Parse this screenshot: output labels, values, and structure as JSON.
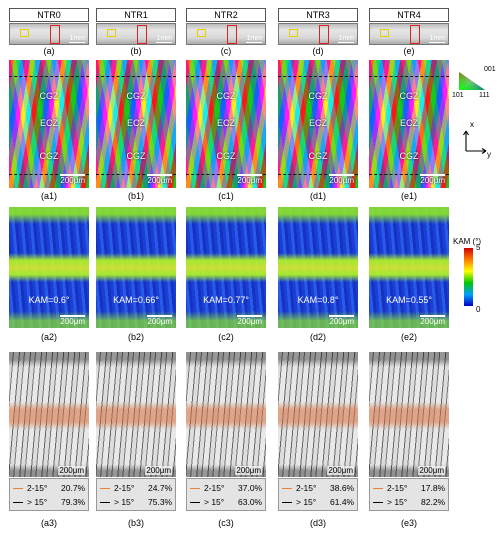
{
  "samples": [
    {
      "name": "NTR0",
      "strip_label": "(a)",
      "ipf_label": "(a1)",
      "kam_label": "(a2)",
      "gb_label": "(a3)",
      "kam": "KAM=0.6°",
      "low_pct": "20.7%",
      "high_pct": "79.3%"
    },
    {
      "name": "NTR1",
      "strip_label": "(b)",
      "ipf_label": "(b1)",
      "kam_label": "(b2)",
      "gb_label": "(b3)",
      "kam": "KAM=0.66°",
      "low_pct": "24.7%",
      "high_pct": "75.3%"
    },
    {
      "name": "NTR2",
      "strip_label": "(c)",
      "ipf_label": "(c1)",
      "kam_label": "(c2)",
      "gb_label": "(c3)",
      "kam": "KAM=0.77°",
      "low_pct": "37.0%",
      "high_pct": "63.0%"
    },
    {
      "name": "NTR3",
      "strip_label": "(d)",
      "ipf_label": "(d1)",
      "kam_label": "(d2)",
      "gb_label": "(d3)",
      "kam": "KAM=0.8°",
      "low_pct": "38.6%",
      "high_pct": "61.4%"
    },
    {
      "name": "NTR4",
      "strip_label": "(e)",
      "ipf_label": "(e1)",
      "kam_label": "(e2)",
      "gb_label": "(e3)",
      "kam": "KAM=0.55°",
      "low_pct": "17.8%",
      "high_pct": "82.2%"
    }
  ],
  "strip_scale": "1mm",
  "map_scale": "200μm",
  "zones": {
    "top": "CGZ",
    "middle": "ECZ",
    "bottom": "CGZ"
  },
  "ipf_key": {
    "top": "001",
    "left": "101",
    "right": "111"
  },
  "axes": {
    "x": "x",
    "y": "y"
  },
  "kam_legend": {
    "title": "KAM (°)",
    "max": "5",
    "min": "0"
  },
  "gb_legend": {
    "low": "2-15°",
    "high": "> 15°"
  },
  "colors": {
    "low_angle": "#e8813a",
    "high_angle": "#000000",
    "roi_yellow": "#e9d000",
    "roi_red": "#d22222"
  }
}
